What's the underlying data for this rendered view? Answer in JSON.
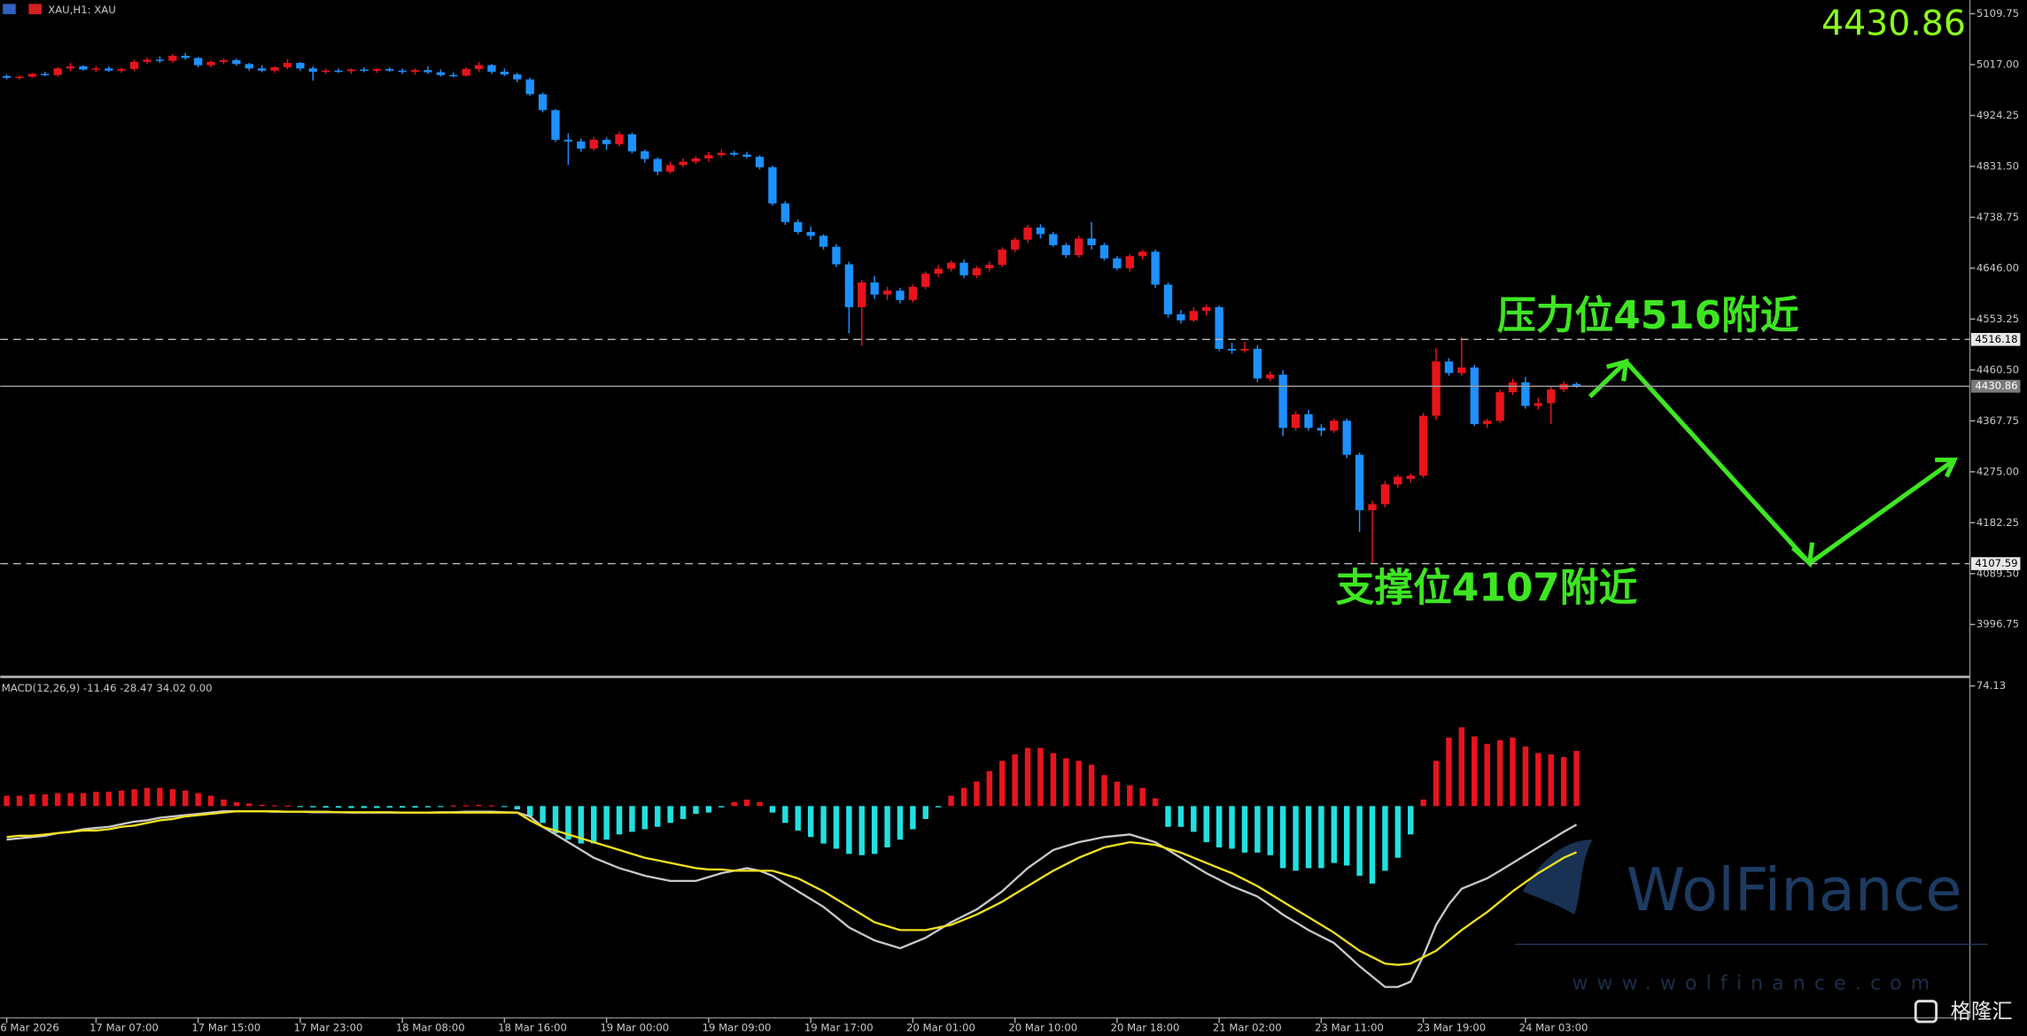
{
  "chart_data": [
    {
      "type": "candlestick",
      "title": "XAU,H1: XAU",
      "categories": [
        "6 Mar 2026",
        null,
        null,
        null,
        null,
        null,
        null,
        "17 Mar 07:00",
        null,
        null,
        null,
        null,
        null,
        null,
        null,
        "17 Mar 15:00",
        null,
        null,
        null,
        null,
        null,
        null,
        null,
        "17 Mar 23:00",
        null,
        null,
        null,
        null,
        null,
        null,
        null,
        "18 Mar 08:00",
        null,
        null,
        null,
        null,
        null,
        null,
        null,
        "18 Mar 16:00",
        null,
        null,
        null,
        null,
        null,
        null,
        null,
        "19 Mar 00:00",
        null,
        null,
        null,
        null,
        null,
        null,
        null,
        "19 Mar 09:00",
        null,
        null,
        null,
        null,
        null,
        null,
        null,
        "19 Mar 17:00",
        null,
        null,
        null,
        null,
        null,
        null,
        null,
        "20 Mar 01:00",
        null,
        null,
        null,
        null,
        null,
        null,
        null,
        "20 Mar 10:00",
        null,
        null,
        null,
        null,
        null,
        null,
        null,
        "20 Mar 18:00",
        null,
        null,
        null,
        null,
        null,
        null,
        null,
        "21 Mar 02:00",
        null,
        null,
        null,
        null,
        null,
        null,
        null,
        "23 Mar 11:00",
        null,
        null,
        null,
        null,
        null,
        null,
        null,
        "23 Mar 19:00",
        null,
        null,
        null,
        null,
        null,
        null,
        null,
        "24 Mar 03:00",
        null,
        null,
        null,
        null
      ],
      "open": [
        4996,
        4994,
        4995,
        5000,
        4998,
        5010,
        5014,
        5008,
        5010,
        5006,
        5009,
        5022,
        5026,
        5024,
        5033,
        5029,
        5016,
        5022,
        5025,
        5018,
        5010,
        5006,
        5012,
        5020,
        5010,
        5004,
        5006,
        5005,
        5008,
        5006,
        5009,
        5006,
        5004,
        5007,
        5003,
        4998,
        4997,
        5009,
        5016,
        5004,
        4999,
        4990,
        4963,
        4934,
        4880,
        4877,
        4864,
        4880,
        4872,
        4890,
        4859,
        4845,
        4822,
        4834,
        4840,
        4846,
        4852,
        4856,
        4853,
        4849,
        4830,
        4764,
        4730,
        4712,
        4705,
        4685,
        4653,
        4575,
        4620,
        4598,
        4605,
        4588,
        4612,
        4636,
        4645,
        4656,
        4633,
        4646,
        4652,
        4680,
        4698,
        4720,
        4708,
        4688,
        4670,
        4700,
        4688,
        4664,
        4646,
        4668,
        4676,
        4616,
        4562,
        4551,
        4568,
        4575,
        4499,
        4496,
        4499,
        4445,
        4452,
        4355,
        4380,
        4355,
        4350,
        4368,
        4306,
        4205,
        4216,
        4252,
        4262,
        4268,
        4377,
        4476,
        4455,
        4465,
        4362,
        4368,
        4420,
        4438,
        4395,
        4400,
        4425,
        4435
      ],
      "high": [
        4999,
        4997,
        5002,
        5004,
        5012,
        5020,
        5016,
        5014,
        5014,
        5012,
        5026,
        5030,
        5032,
        5036,
        5038,
        5031,
        5025,
        5028,
        5028,
        5020,
        5016,
        5014,
        5027,
        5022,
        5014,
        5010,
        5010,
        5010,
        5012,
        5010,
        5012,
        5010,
        5010,
        5014,
        5008,
        5003,
        5012,
        5022,
        5018,
        5010,
        5002,
        4993,
        4966,
        4936,
        4892,
        4882,
        4885,
        4884,
        4895,
        4893,
        4862,
        4848,
        4840,
        4846,
        4850,
        4858,
        4862,
        4860,
        4858,
        4852,
        4833,
        4768,
        4735,
        4722,
        4708,
        4690,
        4658,
        4625,
        4632,
        4612,
        4610,
        4616,
        4640,
        4652,
        4660,
        4662,
        4650,
        4658,
        4684,
        4702,
        4725,
        4726,
        4712,
        4692,
        4705,
        4730,
        4692,
        4668,
        4672,
        4680,
        4680,
        4620,
        4570,
        4575,
        4580,
        4578,
        4510,
        4512,
        4506,
        4458,
        4460,
        4385,
        4388,
        4362,
        4372,
        4372,
        4310,
        4222,
        4258,
        4270,
        4272,
        4382,
        4500,
        4482,
        4520,
        4470,
        4372,
        4425,
        4445,
        4448,
        4410,
        4430,
        4440,
        4438
      ],
      "low": [
        4990,
        4989,
        4993,
        4996,
        4995,
        5005,
        5006,
        5003,
        5004,
        5002,
        5005,
        5018,
        5020,
        5020,
        5026,
        5012,
        5012,
        5018,
        5015,
        5006,
        5003,
        5002,
        5008,
        5006,
        4988,
        5000,
        5002,
        5000,
        5003,
        5002,
        5004,
        5000,
        4999,
        5000,
        4995,
        4994,
        4995,
        5004,
        5000,
        4996,
        4985,
        4960,
        4930,
        4876,
        4834,
        4858,
        4860,
        4862,
        4868,
        4855,
        4838,
        4816,
        4818,
        4830,
        4836,
        4840,
        4848,
        4850,
        4846,
        4826,
        4760,
        4725,
        4708,
        4698,
        4680,
        4648,
        4527,
        4505,
        4590,
        4588,
        4582,
        4584,
        4608,
        4630,
        4640,
        4628,
        4628,
        4640,
        4648,
        4675,
        4692,
        4700,
        4685,
        4665,
        4665,
        4680,
        4660,
        4642,
        4640,
        4662,
        4610,
        4556,
        4545,
        4548,
        4560,
        4495,
        4490,
        4492,
        4438,
        4440,
        4340,
        4350,
        4350,
        4340,
        4346,
        4300,
        4165,
        4107.6,
        4210,
        4246,
        4255,
        4264,
        4370,
        4450,
        4450,
        4358,
        4355,
        4364,
        4415,
        4390,
        4388,
        4362,
        4420,
        4428
      ],
      "close": [
        4993,
        4995,
        5000,
        4998,
        5010,
        5014,
        5008,
        5010,
        5006,
        5009,
        5022,
        5026,
        5024,
        5033,
        5029,
        5016,
        5022,
        5025,
        5018,
        5010,
        5006,
        5012,
        5020,
        5010,
        5004,
        5006,
        5005,
        5008,
        5006,
        5009,
        5006,
        5004,
        5007,
        5003,
        4998,
        4997,
        5009,
        5016,
        5004,
        4999,
        4990,
        4963,
        4934,
        4880,
        4877,
        4864,
        4880,
        4872,
        4890,
        4859,
        4845,
        4822,
        4834,
        4840,
        4846,
        4852,
        4856,
        4853,
        4849,
        4830,
        4764,
        4730,
        4712,
        4705,
        4685,
        4653,
        4575,
        4620,
        4598,
        4605,
        4588,
        4612,
        4636,
        4645,
        4656,
        4633,
        4646,
        4652,
        4680,
        4698,
        4720,
        4708,
        4688,
        4670,
        4700,
        4688,
        4664,
        4646,
        4668,
        4676,
        4616,
        4562,
        4551,
        4568,
        4575,
        4499,
        4496,
        4499,
        4445,
        4452,
        4355,
        4380,
        4355,
        4350,
        4368,
        4306,
        4205,
        4216,
        4252,
        4266,
        4268,
        4377,
        4476,
        4455,
        4465,
        4362,
        4368,
        4420,
        4438,
        4395,
        4400,
        4425,
        4435,
        4430.86
      ],
      "up_color": "#e8141c",
      "down_color": "#1e90ff",
      "ylim": [
        3903.6,
        5134.7
      ],
      "yticks": [
        5109.75,
        {
          "value": 5017,
          "label": "5017.00"
        },
        4924.25,
        {
          "value": 4831.5,
          "label": "4831.50"
        },
        4738.75,
        {
          "value": 4646,
          "label": "4646.00"
        },
        4553.25,
        {
          "value": 4460.5,
          "label": "4460.50"
        },
        4367.75,
        {
          "value": 4275,
          "label": "4275.00"
        },
        4182.25,
        {
          "value": 4089.5,
          "label": "4089.50"
        },
        3996.75
      ],
      "hlines": [
        4516.18,
        4107.59
      ],
      "last_price": 4430.86,
      "annotations": [
        "压力位4516附近",
        "支撑位4107附近"
      ]
    },
    {
      "type": "macd",
      "title": "MACD(12,26,9) -11.46 -28.47 34.02 0.00",
      "ylim": [
        -130.7,
        78.1
      ],
      "yticks": [
        74.13
      ],
      "series": [
        {
          "kind": "histogram",
          "color": "#e8141c",
          "negative_color": "#22e0e0",
          "values": [
            6.4,
            6.4,
            7.2,
            7.2,
            8,
            8,
            8,
            8.8,
            8.8,
            9.6,
            10.4,
            11.2,
            11.2,
            10.4,
            9.6,
            8,
            6.4,
            4,
            2.4,
            1.6,
            0.8,
            0.5,
            0.3,
            -0.5,
            -0.8,
            -1,
            -1,
            -1.2,
            -1.2,
            -1.2,
            -1,
            -1,
            -1,
            -0.8,
            -0.5,
            0.3,
            0.5,
            0.8,
            0.5,
            -0.5,
            -2,
            -6.4,
            -10.4,
            -16.7,
            -20.7,
            -23.1,
            -23.1,
            -20.7,
            -17.5,
            -15.9,
            -14.3,
            -12.8,
            -10.4,
            -8,
            -4.8,
            -4,
            -0.8,
            2.4,
            4,
            2.4,
            -4,
            -10.4,
            -15.1,
            -19.1,
            -23.1,
            -26.3,
            -29.5,
            -30.3,
            -29.5,
            -25.5,
            -20.7,
            -14.3,
            -8,
            -0.8,
            6.4,
            11.2,
            15.1,
            21.5,
            27.9,
            31.9,
            35.9,
            35.9,
            32.7,
            29.5,
            27.9,
            25.5,
            19.1,
            15.1,
            12.8,
            11.2,
            4.8,
            -12.8,
            -12.8,
            -15.9,
            -22.3,
            -25.5,
            -26.3,
            -28.7,
            -28.7,
            -30.3,
            -38.3,
            -39.9,
            -38.3,
            -38.3,
            -35.1,
            -36.7,
            -43,
            -47.8,
            -39.9,
            -31.9,
            -17.5,
            4,
            27.9,
            42.2,
            48.6,
            43,
            38.3,
            40.6,
            42.2,
            36.7,
            32.7,
            31.9,
            30.3,
            34.02
          ]
        },
        {
          "kind": "line",
          "color": "#c8c8c8",
          "values": [
            -20.7,
            -19.9,
            -19.1,
            -18.3,
            -16.7,
            -15.9,
            -14.3,
            -13.5,
            -12.8,
            -11.2,
            -9.6,
            -8.8,
            -7.2,
            -6.4,
            -5.6,
            -4.8,
            -4,
            -3.2,
            -3.2,
            -3.2,
            -3.2,
            -3.5,
            -3.5,
            -3.5,
            -3.8,
            -3.8,
            -3.8,
            -4,
            -4,
            -4,
            -4,
            -4,
            -4,
            -4,
            -3.8,
            -3.8,
            -3.5,
            -3.5,
            -3.5,
            -3.8,
            -4,
            -6.4,
            -12.8,
            -17.5,
            -22.3,
            -27.1,
            -31.9,
            -35.1,
            -38.3,
            -40.6,
            -43,
            -44.6,
            -46.2,
            -46.2,
            -46.2,
            -43.8,
            -41.4,
            -39.9,
            -38.3,
            -39.9,
            -43,
            -47.8,
            -52.6,
            -57.4,
            -62.2,
            -68.5,
            -74.9,
            -78.9,
            -82.9,
            -85.3,
            -87.7,
            -84.5,
            -81.3,
            -76.5,
            -71.7,
            -67.7,
            -63.8,
            -58.2,
            -52.6,
            -45.4,
            -38.3,
            -32.7,
            -27.1,
            -24.7,
            -22.3,
            -20.7,
            -19.1,
            -18.3,
            -17.5,
            -19.9,
            -22.3,
            -27.1,
            -31.9,
            -36.7,
            -41.4,
            -45.4,
            -49.4,
            -52.6,
            -55.8,
            -61.4,
            -67,
            -71.7,
            -76.5,
            -80.5,
            -84.5,
            -91.6,
            -98.8,
            -105.2,
            -111.6,
            -111.6,
            -108.4,
            -92.4,
            -73.3,
            -60.6,
            -51,
            -47.8,
            -44.6,
            -39.9,
            -35.1,
            -30.3,
            -25.5,
            -20.7,
            -15.9,
            -11.46
          ]
        },
        {
          "kind": "line",
          "color": "#f0e020",
          "values": [
            -19.1,
            -18.3,
            -18.3,
            -17.5,
            -16.7,
            -15.9,
            -15.1,
            -15.1,
            -14.3,
            -12.8,
            -12,
            -10.4,
            -8.8,
            -8,
            -6.4,
            -5.6,
            -4.8,
            -4,
            -3.2,
            -3.2,
            -3.2,
            -3.2,
            -3.5,
            -3.5,
            -3.5,
            -3.5,
            -3.8,
            -3.8,
            -3.8,
            -3.8,
            -3.8,
            -4,
            -4,
            -4,
            -4,
            -4,
            -4,
            -4,
            -4,
            -4,
            -4,
            -8.8,
            -12.8,
            -15.1,
            -17.5,
            -19.9,
            -22.3,
            -24.7,
            -27.1,
            -29.5,
            -31.9,
            -33.5,
            -35.1,
            -36.7,
            -38.3,
            -39.1,
            -39.1,
            -39.9,
            -39.9,
            -39.9,
            -39.9,
            -42.2,
            -44.6,
            -48.6,
            -52.6,
            -57.4,
            -62.2,
            -66.9,
            -71.7,
            -74.1,
            -76.5,
            -76.5,
            -76.5,
            -74.9,
            -73.3,
            -70.1,
            -66.9,
            -63,
            -59,
            -54.2,
            -49.4,
            -44.6,
            -39.9,
            -35.9,
            -31.9,
            -28.7,
            -25.5,
            -23.9,
            -22.3,
            -23.1,
            -23.9,
            -26.3,
            -28.7,
            -31.9,
            -35.1,
            -38.3,
            -41.4,
            -45.4,
            -49.4,
            -54.2,
            -59,
            -63.8,
            -68.5,
            -73.3,
            -78.1,
            -83.7,
            -89.3,
            -93.2,
            -97.2,
            -98,
            -97.2,
            -93.2,
            -89.3,
            -82.9,
            -76.5,
            -70.9,
            -65.4,
            -59,
            -52.6,
            -47,
            -41.4,
            -36.7,
            -31.9,
            -28.47
          ]
        }
      ]
    }
  ],
  "watermark": {
    "brand": "WolFinance",
    "url": "www.wolfinance.com",
    "source": "格隆汇"
  }
}
